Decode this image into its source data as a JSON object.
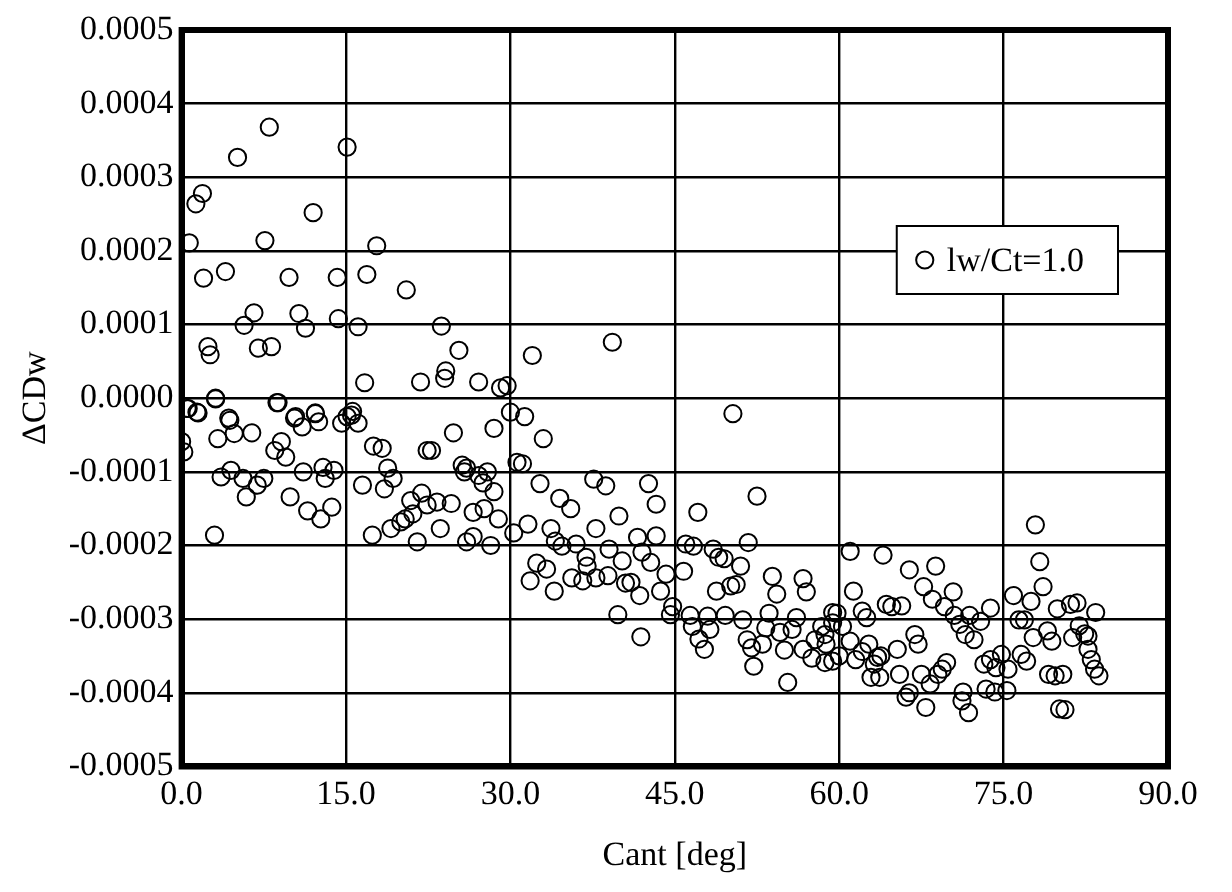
{
  "chart_data": {
    "type": "scatter",
    "xlabel": "Cant [deg]",
    "ylabel": "ΔCDw",
    "xlim": [
      0,
      90
    ],
    "ylim": [
      -0.0005,
      0.0005
    ],
    "xticks": [
      {
        "value": 0,
        "label": "0.0"
      },
      {
        "value": 15,
        "label": "15.0"
      },
      {
        "value": 30,
        "label": "30.0"
      },
      {
        "value": 45,
        "label": "45.0"
      },
      {
        "value": 60,
        "label": "60.0"
      },
      {
        "value": 75,
        "label": "75.0"
      },
      {
        "value": 90,
        "label": "90.0"
      }
    ],
    "yticks": [
      {
        "value": -0.0005,
        "label": "-0.0005"
      },
      {
        "value": -0.0004,
        "label": "-0.0004"
      },
      {
        "value": -0.0003,
        "label": "-0.0003"
      },
      {
        "value": -0.0002,
        "label": "-0.0002"
      },
      {
        "value": -0.0001,
        "label": "-0.0001"
      },
      {
        "value": 0,
        "label": "0.0000"
      },
      {
        "value": 0.0001,
        "label": "0.0001"
      },
      {
        "value": 0.0002,
        "label": "0.0002"
      },
      {
        "value": 0.0003,
        "label": "0.0003"
      },
      {
        "value": 0.0004,
        "label": "0.0004"
      },
      {
        "value": 0.0005,
        "label": "0.0005"
      }
    ],
    "grid": true,
    "legend": "top right",
    "marker": "circle",
    "series": [
      {
        "name": "lw/Ct=1.0",
        "color": "#000000",
        "x": [
          0.7,
          1.3,
          1.9,
          2.0,
          4.0,
          5.1,
          2.4,
          2.6,
          3.1,
          0.5,
          1.4,
          5.7,
          6.6,
          7.0,
          8.2,
          8.0,
          7.6,
          9.8,
          10.7,
          11.3,
          12.0,
          8.8,
          10.4,
          12.2,
          14.2,
          14.3,
          15.1,
          16.1,
          16.9,
          17.8,
          16.7,
          20.5,
          21.8,
          23.7,
          25.3,
          24.1,
          24.0,
          27.1,
          29.1,
          15.5,
          4.3,
          0.0,
          0.2,
          0.6,
          1.5,
          3.1,
          3.3,
          4.4,
          4.8,
          6.4,
          3.6,
          4.5,
          5.6,
          5.9,
          6.9,
          7.5,
          3.0,
          8.7,
          8.5,
          9.1,
          9.5,
          10.3,
          11.0,
          12.2,
          12.5,
          11.1,
          9.9,
          11.5,
          12.7,
          13.7,
          12.9,
          13.9,
          13.1,
          14.6,
          15.1,
          15.6,
          16.1,
          16.5,
          17.4,
          17.5,
          18.3,
          18.8,
          19.3,
          18.5,
          19.1,
          20.0,
          20.4,
          21.1,
          20.9,
          21.9,
          22.4,
          21.5,
          23.3,
          24.6,
          23.6,
          22.4,
          22.8,
          24.8,
          25.6,
          26.0,
          25.8,
          27.5,
          27.1,
          27.9,
          26.6,
          27.6,
          26.0,
          26.6,
          28.2,
          28.5,
          28.5,
          28.9,
          29.7,
          32.0,
          39.3,
          30.0,
          31.3,
          33.0,
          30.6,
          31.1,
          50.3,
          32.7,
          34.5,
          35.5,
          37.6,
          38.7,
          42.6,
          43.3,
          39.9,
          37.8,
          43.3,
          41.6,
          33.7,
          31.6,
          30.3,
          34.1,
          34.7,
          36.0,
          39.0,
          40.2,
          42.0,
          42.8,
          32.4,
          33.3,
          31.8,
          34.0,
          35.6,
          36.9,
          37.0,
          36.6,
          37.8,
          38.9,
          40.5,
          41.0,
          41.8,
          43.7,
          44.2,
          39.8,
          41.9,
          44.8,
          44.6,
          45.8,
          46.0,
          46.7,
          47.1,
          48.5,
          49.0,
          49.5,
          51.0,
          51.7,
          52.5,
          48.8,
          50.1,
          50.6,
          46.4,
          48.0,
          49.6,
          51.2,
          46.6,
          48.2,
          47.2,
          47.7,
          51.6,
          52.0,
          52.2,
          53.0,
          53.3,
          53.6,
          53.9,
          54.3,
          54.6,
          55.0,
          55.3,
          55.7,
          56.1,
          56.7,
          57.0,
          56.7,
          57.8,
          57.5,
          58.4,
          58.8,
          59.4,
          59.4,
          61.0,
          64.0,
          66.4,
          68.8,
          67.7,
          68.5,
          70.4,
          69.6,
          61.3,
          62.1,
          62.5,
          64.3,
          64.8,
          65.7,
          59.8,
          59.4,
          58.7,
          60.3,
          61.0,
          60.0,
          58.7,
          61.5,
          62.1,
          62.7,
          63.2,
          63.5,
          63.8,
          62.9,
          63.7,
          65.3,
          65.5,
          66.9,
          67.2,
          67.5,
          66.4,
          66.1,
          67.9,
          69.0,
          69.4,
          69.8,
          68.3,
          70.5,
          71.0,
          71.9,
          71.5,
          72.3,
          72.9,
          73.8,
          73.2,
          73.8,
          74.3,
          74.8,
          75.4,
          73.4,
          74.2,
          75.3,
          71.2,
          71.8,
          71.3,
          75.9,
          76.4,
          76.9,
          77.5,
          76.6,
          77.1,
          77.7,
          78.6,
          78.3,
          77.9,
          79.0,
          79.4,
          79.9,
          81.1,
          81.7,
          83.4,
          81.3,
          81.9,
          82.4,
          82.7,
          82.7,
          83.0,
          83.3,
          83.7,
          79.1,
          79.7,
          80.4,
          80.1,
          80.6
        ],
        "values": [
          0.000211,
          0.000264,
          0.000278,
          0.000163,
          0.000172,
          0.000327,
          7e-05,
          5.9e-05,
          0.0,
          -1.4e-05,
          -1.9e-05,
          9.9e-05,
          0.000116,
          6.8e-05,
          7e-05,
          0.000368,
          0.000214,
          0.000164,
          0.000115,
          9.5e-05,
          0.000252,
          -6e-06,
          -2.5e-05,
          -2.1e-05,
          0.000164,
          0.000108,
          0.000341,
          9.7e-05,
          0.000168,
          0.000207,
          2.1e-05,
          0.000147,
          2.2e-05,
          9.8e-05,
          6.5e-05,
          3.7e-05,
          2.7e-05,
          2.2e-05,
          1.4e-05,
          -2.3e-05,
          -2.7e-05,
          -5.9e-05,
          -7.3e-05,
          -1.4e-05,
          -2e-05,
          -1e-06,
          -5.5e-05,
          -3e-05,
          -4.8e-05,
          -4.7e-05,
          -0.000107,
          -9.8e-05,
          -0.000109,
          -0.000134,
          -0.000118,
          -0.000109,
          -0.000186,
          -6e-06,
          -7.1e-05,
          -5.9e-05,
          -8e-05,
          -2.7e-05,
          -3.9e-05,
          -2e-05,
          -3.2e-05,
          -0.0001,
          -0.000134,
          -0.000153,
          -0.000164,
          -0.000148,
          -9.4e-05,
          -9.8e-05,
          -0.000109,
          -3.4e-05,
          -2.5e-05,
          -1.8e-05,
          -3.4e-05,
          -0.000118,
          -0.000186,
          -6.5e-05,
          -6.8e-05,
          -9.5e-05,
          -0.000109,
          -0.000123,
          -0.000177,
          -0.000168,
          -0.000164,
          -0.000157,
          -0.000139,
          -0.000129,
          -0.000145,
          -0.000195,
          -0.000141,
          -0.000143,
          -0.000177,
          -7.1e-05,
          -7.1e-05,
          -4.7e-05,
          -9.1e-05,
          -9.5e-05,
          -0.0001,
          -0.000115,
          -0.000105,
          -0.0001,
          -0.000155,
          -0.00015,
          -0.000195,
          -0.000188,
          -0.0002,
          -4.1e-05,
          -0.000127,
          -0.000164,
          1.7e-05,
          5.8e-05,
          7.6e-05,
          -1.9e-05,
          -2.5e-05,
          -5.5e-05,
          -8.7e-05,
          -8.9e-05,
          -2.1e-05,
          -0.000116,
          -0.000136,
          -0.00015,
          -0.00011,
          -0.000119,
          -0.000116,
          -0.000144,
          -0.00016,
          -0.000177,
          -0.000187,
          -0.000189,
          -0.000177,
          -0.000171,
          -0.000183,
          -0.000194,
          -0.000201,
          -0.000198,
          -0.000205,
          -0.000221,
          -0.000209,
          -0.000223,
          -0.000224,
          -0.000232,
          -0.000248,
          -0.000262,
          -0.000244,
          -0.000216,
          -0.000228,
          -0.000248,
          -0.000244,
          -0.000241,
          -0.000251,
          -0.00025,
          -0.000268,
          -0.000262,
          -0.000239,
          -0.000294,
          -0.000324,
          -0.000283,
          -0.000294,
          -0.000235,
          -0.000198,
          -0.000201,
          -0.000155,
          -0.000205,
          -0.000216,
          -0.000218,
          -0.000228,
          -0.000196,
          -0.000133,
          -0.000262,
          -0.000255,
          -0.000253,
          -0.000295,
          -0.000296,
          -0.000295,
          -0.000301,
          -0.00031,
          -0.000314,
          -0.000327,
          -0.000341,
          -0.000328,
          -0.000339,
          -0.000364,
          -0.000334,
          -0.000312,
          -0.000292,
          -0.000242,
          -0.000266,
          -0.000318,
          -0.000342,
          -0.000386,
          -0.000314,
          -0.000298,
          -0.000245,
          -0.000263,
          -0.000341,
          -0.000328,
          -0.000353,
          -0.00031,
          -0.000334,
          -0.000357,
          -0.000291,
          -0.000208,
          -0.000213,
          -0.000233,
          -0.000228,
          -0.000256,
          -0.000273,
          -0.000263,
          -0.000283,
          -0.000262,
          -0.000289,
          -0.000298,
          -0.00028,
          -0.000283,
          -0.000282,
          -0.000292,
          -0.000305,
          -0.000321,
          -0.00031,
          -0.00033,
          -0.00035,
          -0.000359,
          -0.000355,
          -0.000344,
          -0.000334,
          -0.000361,
          -0.000352,
          -0.00035,
          -0.000379,
          -0.000379,
          -0.000341,
          -0.000375,
          -0.000321,
          -0.000334,
          -0.000375,
          -0.0004,
          -0.000406,
          -0.00042,
          -0.000375,
          -0.000368,
          -0.000359,
          -0.000388,
          -0.000295,
          -0.000307,
          -0.000295,
          -0.000321,
          -0.000328,
          -0.000303,
          -0.000285,
          -0.000361,
          -0.000355,
          -0.000366,
          -0.000348,
          -0.000368,
          -0.000395,
          -0.000399,
          -0.000397,
          -0.000411,
          -0.000427,
          -0.000399,
          -0.000268,
          -0.000301,
          -0.000301,
          -0.000276,
          -0.000348,
          -0.000357,
          -0.000325,
          -0.000256,
          -0.000222,
          -0.000172,
          -0.000316,
          -0.00033,
          -0.000286,
          -0.00028,
          -0.000278,
          -0.000291,
          -0.000325,
          -0.000309,
          -0.00032,
          -0.000323,
          -0.000341,
          -0.000355,
          -0.000368,
          -0.000377,
          -0.000375,
          -0.000377,
          -0.000375,
          -0.000422,
          -0.000423
        ]
      }
    ]
  }
}
